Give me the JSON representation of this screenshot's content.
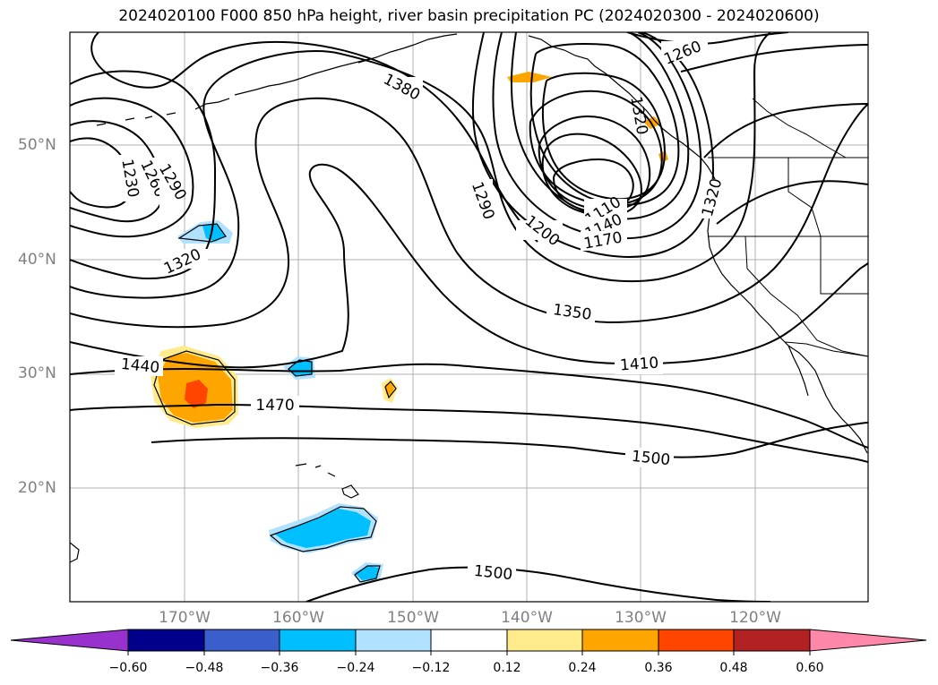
{
  "title": "2024020100 F000 850 hPa height, river basin precipitation PC (2024020300 - 2024020600)",
  "latitude_labels": [
    "50°N",
    "40°N",
    "30°N",
    "20°N"
  ],
  "longitude_labels": [
    "170°W",
    "160°W",
    "150°W",
    "140°W",
    "130°W",
    "120°W"
  ],
  "contour_labels": [
    "1230",
    "1260",
    "1290",
    "1320",
    "1380",
    "1290",
    "1200",
    "1110",
    "1140",
    "1170",
    "1260",
    "1320",
    "1350",
    "1410",
    "1440",
    "1470",
    "1500",
    "1500",
    "1320"
  ],
  "colorbar": {
    "ticks": [
      "−0.60",
      "−0.48",
      "−0.36",
      "−0.24",
      "−0.12",
      "0.12",
      "0.24",
      "0.36",
      "0.48",
      "0.60"
    ],
    "colors": [
      "#9932cc",
      "#00008b",
      "#3a5fcd",
      "#00bfff",
      "#b0e2ff",
      "#ffffff",
      "#ffeb8c",
      "#ffa500",
      "#ff4500",
      "#b22222",
      "#ff88aa"
    ]
  }
}
